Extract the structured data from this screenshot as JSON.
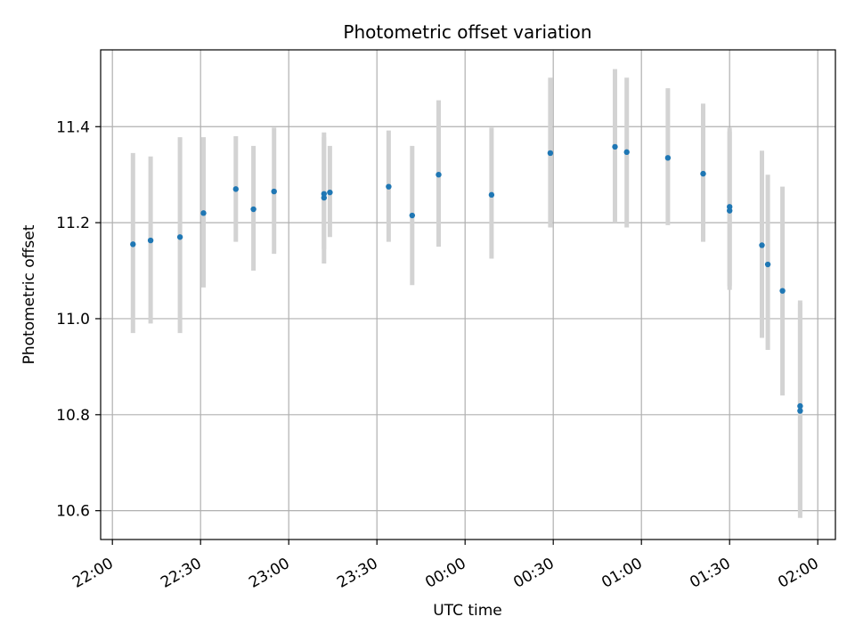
{
  "chart_data": {
    "type": "scatter",
    "title": "Photometric offset variation",
    "xlabel": "UTC time",
    "ylabel": "Photometric offset",
    "x_tick_labels": [
      "22:00",
      "22:30",
      "23:00",
      "23:30",
      "00:00",
      "00:30",
      "01:00",
      "01:30",
      "02:00"
    ],
    "y_tick_labels": [
      "10.6",
      "10.8",
      "11.0",
      "11.2",
      "11.4"
    ],
    "y_ticks": [
      10.6,
      10.8,
      11.0,
      11.2,
      11.4
    ],
    "xlim": [
      "21:56",
      "02:06"
    ],
    "ylim": [
      10.54,
      11.56
    ],
    "grid": true,
    "colors": {
      "point": "#1f77b4",
      "errorbar": "#d3d3d3",
      "grid": "#b0b0b0"
    },
    "series": [
      {
        "points": [
          {
            "x": "22:07",
            "y": 11.155,
            "err_low": 10.97,
            "err_high": 11.345
          },
          {
            "x": "22:13",
            "y": 11.163,
            "err_low": 10.99,
            "err_high": 11.338
          },
          {
            "x": "22:23",
            "y": 11.17,
            "err_low": 10.97,
            "err_high": 11.378
          },
          {
            "x": "22:31",
            "y": 11.22,
            "err_low": 11.065,
            "err_high": 11.378
          },
          {
            "x": "22:42",
            "y": 11.27,
            "err_low": 11.16,
            "err_high": 11.38
          },
          {
            "x": "22:48",
            "y": 11.228,
            "err_low": 11.1,
            "err_high": 11.36
          },
          {
            "x": "22:55",
            "y": 11.265,
            "err_low": 11.135,
            "err_high": 11.398
          },
          {
            "x": "23:12",
            "y": 11.26,
            "err_low": 11.145,
            "err_high": 11.378
          },
          {
            "x": "23:12",
            "y": 11.252,
            "err_low": 11.115,
            "err_high": 11.388
          },
          {
            "x": "23:14",
            "y": 11.263,
            "err_low": 11.17,
            "err_high": 11.36
          },
          {
            "x": "23:34",
            "y": 11.275,
            "err_low": 11.16,
            "err_high": 11.392
          },
          {
            "x": "23:42",
            "y": 11.215,
            "err_low": 11.07,
            "err_high": 11.36
          },
          {
            "x": "23:51",
            "y": 11.3,
            "err_low": 11.15,
            "err_high": 11.455
          },
          {
            "x": "00:09",
            "y": 11.258,
            "err_low": 11.125,
            "err_high": 11.398
          },
          {
            "x": "00:29",
            "y": 11.345,
            "err_low": 11.19,
            "err_high": 11.502
          },
          {
            "x": "00:51",
            "y": 11.358,
            "err_low": 11.2,
            "err_high": 11.52
          },
          {
            "x": "00:55",
            "y": 11.347,
            "err_low": 11.19,
            "err_high": 11.502
          },
          {
            "x": "01:09",
            "y": 11.335,
            "err_low": 11.195,
            "err_high": 11.48
          },
          {
            "x": "01:21",
            "y": 11.302,
            "err_low": 11.16,
            "err_high": 11.448
          },
          {
            "x": "01:30",
            "y": 11.233,
            "err_low": 11.068,
            "err_high": 11.398
          },
          {
            "x": "01:30",
            "y": 11.225,
            "err_low": 11.06,
            "err_high": 11.39
          },
          {
            "x": "01:41",
            "y": 11.153,
            "err_low": 10.96,
            "err_high": 11.35
          },
          {
            "x": "01:43",
            "y": 11.113,
            "err_low": 10.935,
            "err_high": 11.3
          },
          {
            "x": "01:48",
            "y": 11.058,
            "err_low": 10.84,
            "err_high": 11.275
          },
          {
            "x": "01:54",
            "y": 10.818,
            "err_low": 10.6,
            "err_high": 11.038
          },
          {
            "x": "01:54",
            "y": 10.808,
            "err_low": 10.585,
            "err_high": 11.032
          }
        ]
      }
    ]
  }
}
